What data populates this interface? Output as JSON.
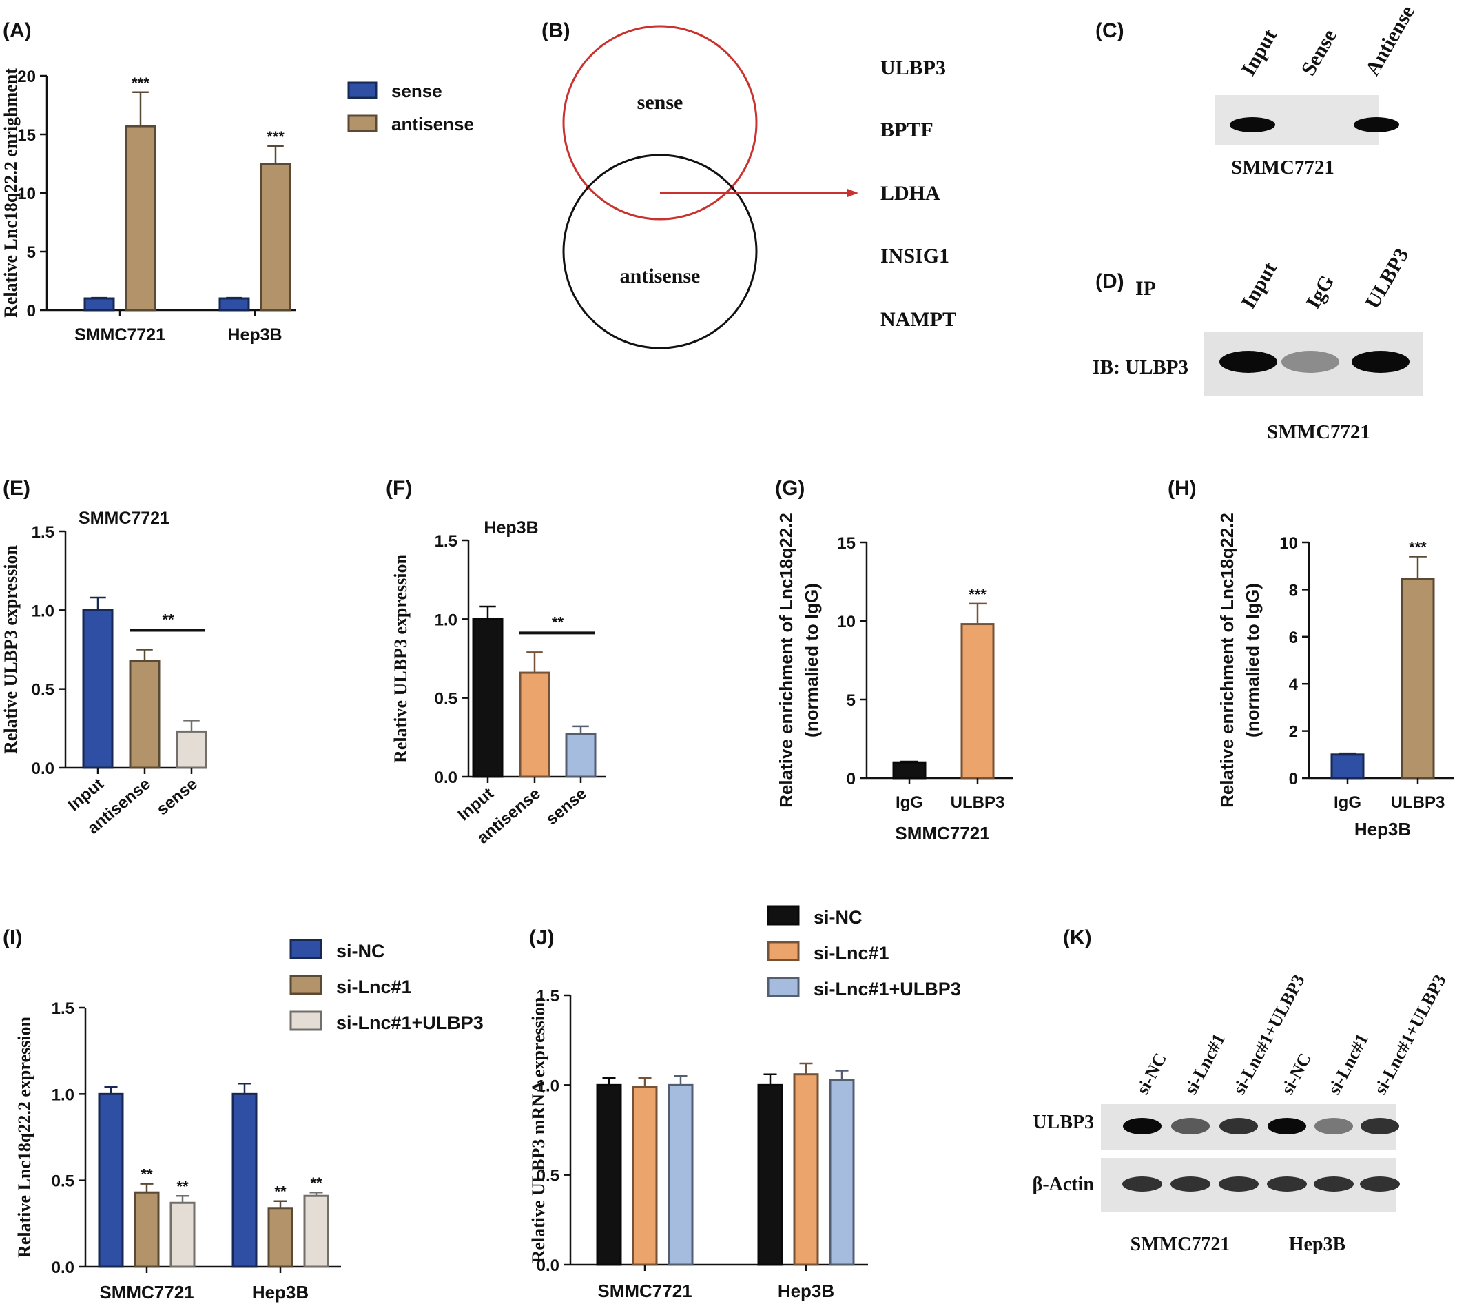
{
  "panel_labels": {
    "A": "(A)",
    "B": "(B)",
    "C": "(C)",
    "D": "(D)",
    "E": "(E)",
    "F": "(F)",
    "G": "(G)",
    "H": "(H)",
    "I": "(I)",
    "J": "(J)",
    "K": "(K)"
  },
  "colors": {
    "navy": "#2e4fa3",
    "tan": "#b39369",
    "black": "#111111",
    "orange": "#eba46b",
    "lightblue": "#a6bcdf",
    "lightgray": "#e3ddd6",
    "red": "#c8322f",
    "tan_edge": "#7a5c34",
    "orange_edge": "#7a4a20"
  },
  "venn": {
    "set1": "sense",
    "set2": "antisense",
    "genes": [
      "ULBP3",
      "BPTF",
      "LDHA",
      "INSIG1",
      "NAMPT"
    ]
  },
  "blot_c": {
    "lanes": [
      "Input",
      "Sense",
      "Antiense"
    ],
    "band_intensity": [
      1.0,
      0.0,
      1.0
    ],
    "cell_line": "SMMC7721"
  },
  "blot_d": {
    "ip_label": "IP",
    "lanes": [
      "Input",
      "IgG",
      "ULBP3"
    ],
    "row_label": "IB: ULBP3",
    "band_intensity": [
      1.0,
      0.35,
      1.0
    ],
    "cell_line": "SMMC7721"
  },
  "blot_k": {
    "lanes": [
      "si-NC",
      "si-Lnc#1",
      "si-Lnc#1+ULBP3",
      "si-NC",
      "si-Lnc#1",
      "si-Lnc#1+ULBP3"
    ],
    "rows": [
      "ULBP3",
      "β-Actin"
    ],
    "ulbp3_intensity": [
      1.0,
      0.6,
      0.8,
      1.0,
      0.45,
      0.8
    ],
    "actin_intensity": [
      0.8,
      0.8,
      0.8,
      0.8,
      0.8,
      0.8
    ],
    "cell_lines": [
      "SMMC7721",
      "Hep3B"
    ]
  },
  "chart_data": [
    {
      "panel": "A",
      "type": "bar",
      "categories": [
        "SMMC7721",
        "Hep3B"
      ],
      "series": [
        {
          "name": "sense",
          "color": "#2e4fa3",
          "values": [
            1.0,
            1.0
          ],
          "errors": [
            0.05,
            0.05
          ]
        },
        {
          "name": "antisense",
          "color": "#b39369",
          "values": [
            15.7,
            12.5
          ],
          "errors": [
            2.9,
            1.5
          ]
        }
      ],
      "ylabel": "Relative Lnc18q22.2 enrighment",
      "ylim": [
        0,
        20
      ],
      "yticks": [
        "0",
        "5",
        "10",
        "15",
        "20"
      ],
      "sig": [
        {
          "series": 1,
          "cat": 0,
          "text": "***"
        },
        {
          "series": 1,
          "cat": 1,
          "text": "***"
        }
      ],
      "legend": "right"
    },
    {
      "panel": "E",
      "type": "bar",
      "title": "SMMC7721",
      "categories": [
        "Input",
        "antisense",
        "sense"
      ],
      "values": [
        1.0,
        0.68,
        0.23
      ],
      "errors": [
        0.08,
        0.07,
        0.07
      ],
      "colors": [
        "#2e4fa3",
        "#b39369",
        "#e3ddd6"
      ],
      "ylabel": "Relative ULBP3 expression",
      "ylim": [
        0,
        1.5
      ],
      "yticks": [
        "0.0",
        "0.5",
        "1.0",
        "1.5"
      ],
      "bracket": {
        "from": 1,
        "to": 2,
        "text": "**"
      }
    },
    {
      "panel": "F",
      "type": "bar",
      "title": "Hep3B",
      "categories": [
        "Input",
        "antisense",
        "sense"
      ],
      "values": [
        1.0,
        0.66,
        0.27
      ],
      "errors": [
        0.08,
        0.13,
        0.05
      ],
      "colors": [
        "#111111",
        "#eba46b",
        "#a6bcdf"
      ],
      "ylabel": "Relative ULBP3 expression",
      "ylim": [
        0,
        1.5
      ],
      "yticks": [
        "0.0",
        "0.5",
        "1.0",
        "1.5"
      ],
      "bracket": {
        "from": 1,
        "to": 2,
        "text": "**"
      }
    },
    {
      "panel": "G",
      "type": "bar",
      "categories": [
        "IgG",
        "ULBP3"
      ],
      "values": [
        1.0,
        9.8
      ],
      "errors": [
        0.05,
        1.3
      ],
      "colors": [
        "#111111",
        "#eba46b"
      ],
      "ylabel": "Relative enrichment of Lnc18q22.2",
      "ylabel2": "(normalied to IgG)",
      "xlabel": "SMMC7721",
      "ylim": [
        0,
        15
      ],
      "yticks": [
        "0",
        "5",
        "10",
        "15"
      ],
      "sig": [
        {
          "cat": 1,
          "text": "***"
        }
      ]
    },
    {
      "panel": "H",
      "type": "bar",
      "categories": [
        "IgG",
        "ULBP3"
      ],
      "values": [
        1.0,
        8.45
      ],
      "errors": [
        0.05,
        0.95
      ],
      "colors": [
        "#2e4fa3",
        "#b39369"
      ],
      "ylabel": "Relative enrichment of Lnc18q22.2",
      "ylabel2": "(normalied to IgG)",
      "xlabel": "Hep3B",
      "ylim": [
        0,
        10
      ],
      "yticks": [
        "0",
        "2",
        "4",
        "6",
        "8",
        "10"
      ],
      "sig": [
        {
          "cat": 1,
          "text": "***"
        }
      ]
    },
    {
      "panel": "I",
      "type": "bar",
      "categories": [
        "SMMC7721",
        "Hep3B"
      ],
      "series": [
        {
          "name": "si-NC",
          "color": "#2e4fa3",
          "values": [
            1.0,
            1.0
          ],
          "errors": [
            0.04,
            0.06
          ]
        },
        {
          "name": "si-Lnc#1",
          "color": "#b39369",
          "values": [
            0.43,
            0.34
          ],
          "errors": [
            0.05,
            0.04
          ]
        },
        {
          "name": "si-Lnc#1+ULBP3",
          "color": "#e3ddd6",
          "values": [
            0.37,
            0.41
          ],
          "errors": [
            0.04,
            0.02
          ]
        }
      ],
      "ylabel": "Relative Lnc18q22.2 expression",
      "ylim": [
        0,
        1.5
      ],
      "yticks": [
        "0.0",
        "0.5",
        "1.0",
        "1.5"
      ],
      "sig": [
        {
          "series": 1,
          "cat": 0,
          "text": "**"
        },
        {
          "series": 2,
          "cat": 0,
          "text": "**"
        },
        {
          "series": 1,
          "cat": 1,
          "text": "**"
        },
        {
          "series": 2,
          "cat": 1,
          "text": "**"
        }
      ],
      "legend": "top"
    },
    {
      "panel": "J",
      "type": "bar",
      "categories": [
        "SMMC7721",
        "Hep3B"
      ],
      "series": [
        {
          "name": "si-NC",
          "color": "#111111",
          "values": [
            1.0,
            1.0
          ],
          "errors": [
            0.04,
            0.06
          ]
        },
        {
          "name": "si-Lnc#1",
          "color": "#eba46b",
          "values": [
            0.99,
            1.06
          ],
          "errors": [
            0.05,
            0.06
          ]
        },
        {
          "name": "si-Lnc#1+ULBP3",
          "color": "#a6bcdf",
          "values": [
            1.0,
            1.03
          ],
          "errors": [
            0.05,
            0.05
          ]
        }
      ],
      "ylabel": "Relative ULBP3 mRNA expression",
      "ylim": [
        0,
        1.5
      ],
      "yticks": [
        "0.0",
        "0.5",
        "1.0",
        "1.5"
      ],
      "legend": "top"
    }
  ]
}
